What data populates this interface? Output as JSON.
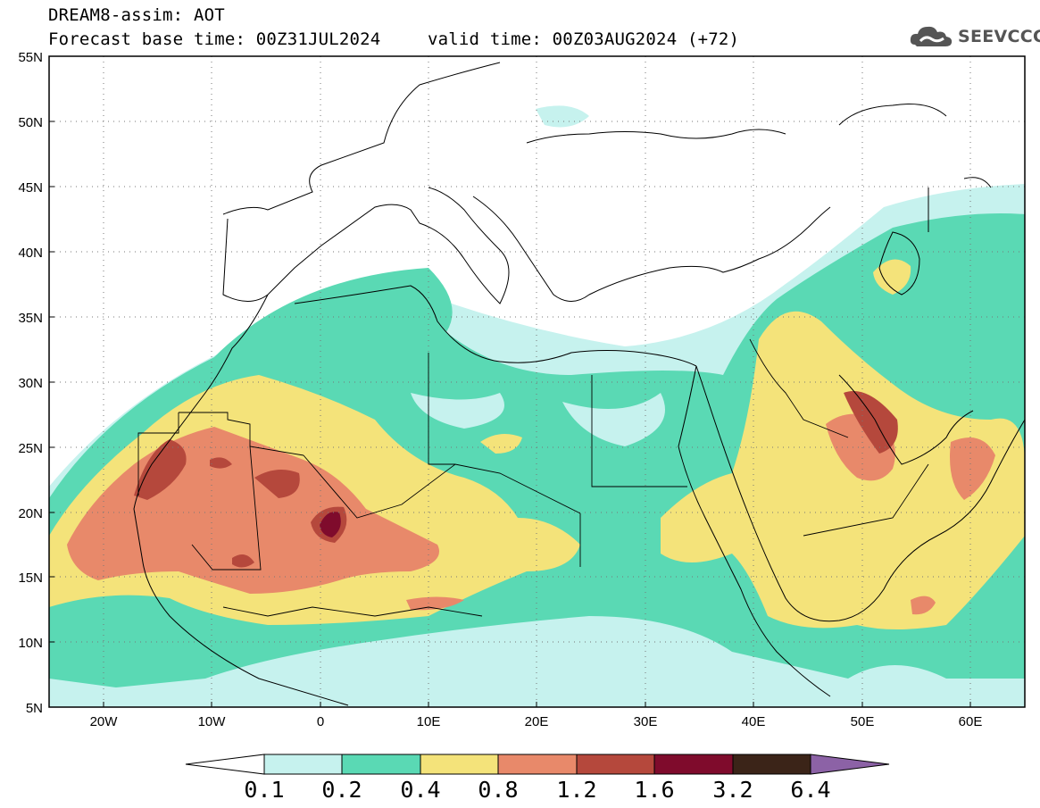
{
  "title": {
    "line1": "DREAM8-assim: AOT",
    "base_time": "Forecast base time: 00Z31JUL2024",
    "valid_time": "valid time: 00Z03AUG2024 (+72)"
  },
  "logo": {
    "icon": "cloud-logo-icon",
    "text": "SEEVCCC"
  },
  "map": {
    "lat_labels": [
      "55N",
      "50N",
      "45N",
      "40N",
      "35N",
      "30N",
      "25N",
      "20N",
      "15N",
      "10N",
      "5N"
    ],
    "lat_values": [
      55,
      50,
      45,
      40,
      35,
      30,
      25,
      20,
      15,
      10,
      5
    ],
    "lon_labels": [
      "20W",
      "10W",
      "0",
      "10E",
      "20E",
      "30E",
      "40E",
      "50E",
      "60E"
    ],
    "lon_values": [
      -20,
      -10,
      0,
      10,
      20,
      30,
      40,
      50,
      60
    ],
    "extent": {
      "lon_min": -25,
      "lon_max": 65,
      "lat_min": 5,
      "lat_max": 55
    },
    "grid": "dotted"
  },
  "colorbar": {
    "labels": [
      "0.1",
      "0.2",
      "0.4",
      "0.8",
      "1.2",
      "1.6",
      "3.2",
      "6.4"
    ],
    "colors": [
      "#c6f2ee",
      "#5ad9b4",
      "#f4e37a",
      "#e8896a",
      "#b5483c",
      "#7f0b2c",
      "#3b2418"
    ],
    "under_color": "#ffffff",
    "over_color": "#8c62a6"
  }
}
